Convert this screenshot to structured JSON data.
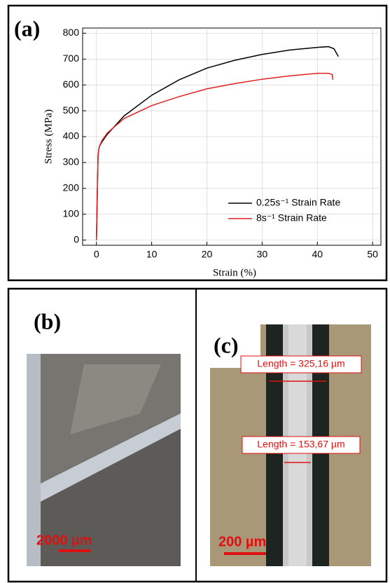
{
  "chart_data": {
    "type": "line",
    "panel_label": "(a)",
    "x_label": "Strain (%)",
    "y_label": "Stress (MPa)",
    "xlim": [
      -2.5,
      51.5
    ],
    "ylim": [
      -20,
      820
    ],
    "xticks": [
      0,
      10,
      20,
      30,
      40,
      50
    ],
    "yticks": [
      0,
      100,
      200,
      300,
      400,
      500,
      600,
      700,
      800
    ],
    "legend": "lower-right",
    "series": [
      {
        "name": "0.25s⁻¹ Strain Rate",
        "color": "#000000",
        "x": [
          0,
          0.3,
          0.5,
          1,
          2,
          5,
          10,
          15,
          20,
          25,
          30,
          35,
          40,
          42,
          43,
          43.8
        ],
        "values": [
          0,
          330,
          360,
          380,
          410,
          480,
          560,
          620,
          665,
          695,
          718,
          735,
          745,
          748,
          740,
          710
        ]
      },
      {
        "name": "8s⁻¹ Strain Rate",
        "color": "#e02020",
        "x": [
          0,
          0.3,
          0.5,
          1,
          2,
          5,
          10,
          15,
          20,
          25,
          30,
          35,
          40,
          42,
          42.7,
          42.8
        ],
        "values": [
          0,
          330,
          360,
          385,
          415,
          470,
          520,
          555,
          585,
          605,
          622,
          635,
          645,
          645,
          640,
          620
        ]
      }
    ]
  },
  "panels": [
    {
      "label": "(b)",
      "scale_bar": "2000 µm"
    },
    {
      "label": "(c)",
      "scale_bar": "200 µm",
      "measurements": [
        "Length = 325,16 µm",
        "Length = 153,67 µm"
      ]
    }
  ]
}
